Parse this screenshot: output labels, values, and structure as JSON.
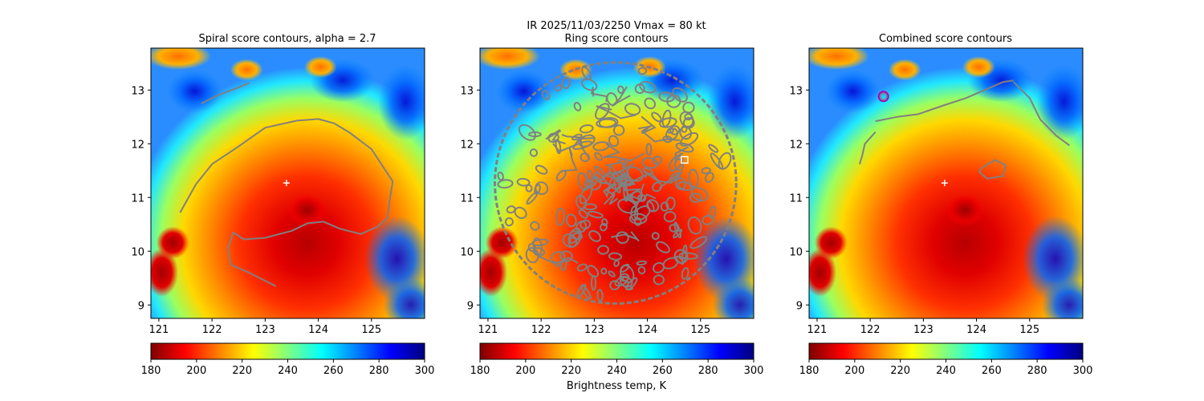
{
  "suptitle_line1": "IR  2025/11/03/2250    Vmax = 80 kt",
  "colorbar_label": "Brightness temp, K",
  "colormap": [
    "#7f0000",
    "#ff0000",
    "#ff8000",
    "#ffff00",
    "#80ff80",
    "#00ffff",
    "#0080ff",
    "#0000ff",
    "#00007f"
  ],
  "contour_color": "#808080",
  "center_marker_color": "#ffffff",
  "ring_marker_color": "#ffffff",
  "combined_marker_color": "#b000b0",
  "chart_data": [
    {
      "type": "heatmap",
      "title": "Spiral score contours, alpha =  2.7",
      "xlim": [
        120.85,
        126.0
      ],
      "ylim": [
        8.75,
        13.78
      ],
      "xticks": [
        121,
        122,
        123,
        124,
        125
      ],
      "yticks": [
        9,
        10,
        11,
        12,
        13
      ],
      "colorbar_ticks": [
        180,
        200,
        220,
        240,
        260,
        280,
        300
      ],
      "colorbar_range": [
        180,
        300
      ],
      "center": {
        "lon": 123.4,
        "lat": 11.27
      },
      "contours": [
        [
          [
            121.4,
            10.72
          ],
          [
            121.7,
            11.25
          ],
          [
            122.0,
            11.62
          ],
          [
            122.5,
            11.95
          ],
          [
            123.0,
            12.3
          ],
          [
            123.6,
            12.43
          ],
          [
            124.0,
            12.46
          ],
          [
            124.3,
            12.38
          ],
          [
            124.6,
            12.2
          ],
          [
            125.0,
            11.9
          ],
          [
            125.2,
            11.6
          ],
          [
            125.4,
            11.3
          ],
          [
            125.35,
            11.0
          ],
          [
            125.3,
            10.62
          ],
          [
            125.1,
            10.45
          ],
          [
            124.8,
            10.32
          ],
          [
            124.4,
            10.42
          ],
          [
            124.1,
            10.55
          ],
          [
            123.8,
            10.52
          ],
          [
            123.5,
            10.38
          ],
          [
            123.0,
            10.25
          ],
          [
            122.6,
            10.22
          ],
          [
            122.4,
            10.35
          ],
          [
            122.3,
            10.05
          ],
          [
            122.35,
            9.75
          ],
          [
            122.7,
            9.6
          ],
          [
            123.0,
            9.45
          ],
          [
            123.2,
            9.35
          ]
        ],
        [
          [
            121.8,
            12.75
          ],
          [
            122.1,
            12.9
          ],
          [
            122.5,
            13.05
          ],
          [
            122.7,
            13.13
          ]
        ]
      ]
    },
    {
      "type": "heatmap",
      "title": "Ring score contours",
      "xlim": [
        120.85,
        126.0
      ],
      "ylim": [
        8.75,
        13.78
      ],
      "xticks": [
        121,
        122,
        123,
        124,
        125
      ],
      "yticks": [
        9,
        10,
        11,
        12,
        13
      ],
      "colorbar_ticks": [
        180,
        200,
        220,
        240,
        260,
        280,
        300
      ],
      "colorbar_range": [
        180,
        300
      ],
      "ring_center": {
        "lon": 123.4,
        "lat": 11.27
      },
      "ring_radius_deg": 2.27,
      "marker": {
        "lon": 124.7,
        "lat": 11.7
      }
    },
    {
      "type": "heatmap",
      "title": "Combined score contours",
      "xlim": [
        120.85,
        126.0
      ],
      "ylim": [
        8.75,
        13.78
      ],
      "xticks": [
        121,
        122,
        123,
        124,
        125
      ],
      "yticks": [
        9,
        10,
        11,
        12,
        13
      ],
      "colorbar_ticks": [
        180,
        200,
        220,
        240,
        260,
        280,
        300
      ],
      "colorbar_range": [
        180,
        300
      ],
      "center": {
        "lon": 123.4,
        "lat": 11.27
      },
      "marker": {
        "lon": 122.25,
        "lat": 12.88
      },
      "contours": [
        [
          [
            122.1,
            12.42
          ],
          [
            122.5,
            12.5
          ],
          [
            122.9,
            12.55
          ],
          [
            123.4,
            12.72
          ],
          [
            123.8,
            12.85
          ],
          [
            124.2,
            13.02
          ],
          [
            124.5,
            13.15
          ],
          [
            124.7,
            13.18
          ]
        ],
        [
          [
            124.7,
            13.15
          ],
          [
            125.0,
            12.85
          ],
          [
            125.2,
            12.45
          ],
          [
            125.5,
            12.15
          ],
          [
            125.75,
            11.97
          ]
        ],
        [
          [
            122.1,
            12.22
          ],
          [
            121.9,
            12.0
          ],
          [
            121.85,
            11.78
          ],
          [
            121.8,
            11.62
          ]
        ],
        [
          [
            124.1,
            11.55
          ],
          [
            124.35,
            11.7
          ],
          [
            124.55,
            11.6
          ],
          [
            124.5,
            11.4
          ],
          [
            124.2,
            11.35
          ],
          [
            124.05,
            11.48
          ],
          [
            124.1,
            11.55
          ]
        ]
      ]
    }
  ]
}
